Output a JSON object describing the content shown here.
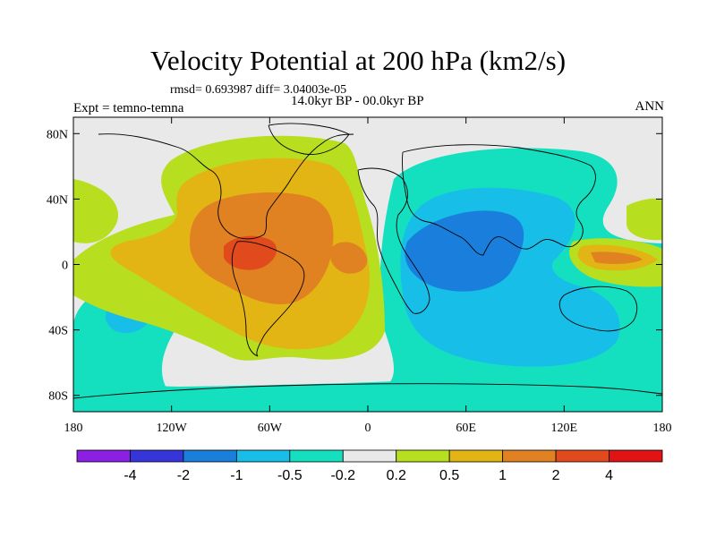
{
  "title": "Velocity Potential at 200 hPa (km2/s)",
  "subtitle_stats": "rmsd= 0.693987 diff= 3.04003e-05",
  "subtitle_period": "14.0kyr BP - 00.0kyr BP",
  "experiment": "Expt = temno-temna",
  "season": "ANN",
  "lat_ticks": [
    "80N",
    "40N",
    "0",
    "40S",
    "80S"
  ],
  "lat_values": [
    80,
    40,
    0,
    -40,
    -80
  ],
  "lon_ticks": [
    "180",
    "120W",
    "60W",
    "0",
    "60E",
    "120E",
    "180"
  ],
  "lon_values": [
    -180,
    -120,
    -60,
    0,
    60,
    120,
    180
  ],
  "colorbar": {
    "colors": [
      "#8b1fe3",
      "#3535d9",
      "#1a7fdc",
      "#17bfe8",
      "#14e0c0",
      "#e9e9e9",
      "#b7de1f",
      "#e2b414",
      "#e08221",
      "#e04a1c",
      "#e01414"
    ],
    "labels": [
      "-4",
      "-2",
      "-1",
      "-0.5",
      "-0.2",
      "0.2",
      "0.5",
      "1",
      "2",
      "4"
    ]
  },
  "fills": {
    "ocean_background": "#e9e9e9"
  }
}
